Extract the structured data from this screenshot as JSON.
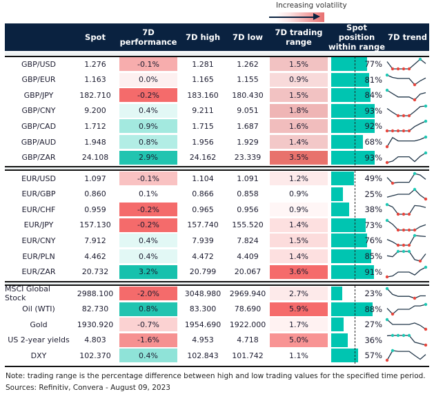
{
  "legend": {
    "label": "Increasing volatility"
  },
  "header": {
    "spot": "Spot",
    "perf": "7D performance",
    "high": "7D high",
    "low": "7D low",
    "range": "7D trading range",
    "position": "Spot position within range",
    "trend": "7D trend"
  },
  "colors": {
    "header": "#0a2240",
    "bar": "#00c5b1",
    "spark_line": "#1f3447",
    "max_marker": "#1cc8b4",
    "min_marker": "#e8453c"
  },
  "groups": [
    {
      "rows": [
        {
          "name": "GBP/USD",
          "spot": "1.276",
          "perf": "-0.1%",
          "perf_color": "#f7adad",
          "high": "1.281",
          "low": "1.262",
          "range": "1.5%",
          "range_color": "#f2c2c2",
          "position": 77,
          "position_label": "77%",
          "trend": [
            0.75,
            0,
            0,
            0,
            0,
            0.5,
            1,
            0.55
          ]
        },
        {
          "name": "GBP/EUR",
          "spot": "1.163",
          "perf": "0.0%",
          "perf_color": "#fdf0f0",
          "high": "1.165",
          "low": "1.155",
          "range": "0.9%",
          "range_color": "#f8dada",
          "position": 81,
          "position_label": "81%",
          "trend": [
            1,
            0.75,
            0.65,
            0.65,
            0.65,
            0,
            0.4,
            0.7
          ]
        },
        {
          "name": "GBP/JPY",
          "spot": "182.710",
          "perf": "-0.2%",
          "perf_color": "#f46b6b",
          "high": "183.160",
          "low": "180.430",
          "range": "1.5%",
          "range_color": "#f2c2c2",
          "position": 84,
          "position_label": "84%",
          "trend": [
            1,
            0.65,
            0.3,
            0.3,
            0.3,
            0,
            0.6,
            0.75
          ]
        },
        {
          "name": "GBP/CNY",
          "spot": "9.200",
          "perf": "0.4%",
          "perf_color": "#e2f8f5",
          "high": "9.211",
          "low": "9.051",
          "range": "1.8%",
          "range_color": "#efb5b5",
          "position": 93,
          "position_label": "93%",
          "trend": [
            0.75,
            0.35,
            0,
            0,
            0,
            0.45,
            0.95,
            1
          ]
        },
        {
          "name": "GBP/CAD",
          "spot": "1.712",
          "perf": "0.9%",
          "perf_color": "#a3e9df",
          "high": "1.715",
          "low": "1.687",
          "range": "1.6%",
          "range_color": "#f1bdbd",
          "position": 92,
          "position_label": "92%",
          "trend": [
            0,
            0,
            0,
            0,
            0,
            0.45,
            0.75,
            1
          ]
        },
        {
          "name": "GBP/AUD",
          "spot": "1.948",
          "perf": "0.8%",
          "perf_color": "#b2ede5",
          "high": "1.956",
          "low": "1.929",
          "range": "1.4%",
          "range_color": "#f3c8c8",
          "position": 68,
          "position_label": "68%",
          "trend": [
            0,
            0.95,
            0.6,
            0.6,
            0.6,
            0.6,
            0.75,
            1
          ]
        },
        {
          "name": "GBP/ZAR",
          "spot": "24.108",
          "perf": "2.9%",
          "perf_color": "#22c4b0",
          "high": "24.162",
          "low": "23.339",
          "range": "3.5%",
          "range_color": "#e8726c",
          "position": 93,
          "position_label": "93%",
          "trend": [
            0,
            0.15,
            0.6,
            0.6,
            0.6,
            0.1,
            0.65,
            1
          ]
        }
      ]
    },
    {
      "rows": [
        {
          "name": "EUR/USD",
          "spot": "1.097",
          "perf": "-0.1%",
          "perf_color": "#f9c2c2",
          "high": "1.104",
          "low": "1.091",
          "range": "1.2%",
          "range_color": "#fdeaea",
          "position": 49,
          "position_label": "49%",
          "trend": [
            0.6,
            0,
            0.1,
            0.1,
            0.1,
            1,
            0.85,
            0.4
          ]
        },
        {
          "name": "EUR/GBP",
          "spot": "0.860",
          "perf": "0.1%",
          "perf_color": "#ffffff",
          "high": "0.866",
          "low": "0.858",
          "range": "0.9%",
          "range_color": "#ffffff",
          "position": 25,
          "position_label": "25%",
          "trend": [
            0.2,
            0.35,
            0.5,
            0.5,
            0.5,
            1,
            0.4,
            0
          ]
        },
        {
          "name": "EUR/CHF",
          "spot": "0.959",
          "perf": "-0.2%",
          "perf_color": "#f46b6b",
          "high": "0.965",
          "low": "0.956",
          "range": "0.9%",
          "range_color": "#fff6f6",
          "position": 38,
          "position_label": "38%",
          "trend": [
            1,
            0.75,
            0,
            0,
            0,
            0.9,
            0.85,
            0.7
          ]
        },
        {
          "name": "EUR/JPY",
          "spot": "157.130",
          "perf": "-0.2%",
          "perf_color": "#f46b6b",
          "high": "157.740",
          "low": "155.520",
          "range": "1.4%",
          "range_color": "#fde0e0",
          "position": 73,
          "position_label": "73%",
          "trend": [
            1,
            0.6,
            0,
            0,
            0,
            0,
            0.35,
            0.55
          ]
        },
        {
          "name": "EUR/CNY",
          "spot": "7.912",
          "perf": "0.4%",
          "perf_color": "#e2f8f5",
          "high": "7.939",
          "low": "7.824",
          "range": "1.5%",
          "range_color": "#fcdcdc",
          "position": 76,
          "position_label": "76%",
          "trend": [
            0.6,
            0.35,
            0,
            0,
            0,
            1,
            0.95,
            0.9
          ]
        },
        {
          "name": "EUR/PLN",
          "spot": "4.462",
          "perf": "0.4%",
          "perf_color": "#e2f8f5",
          "high": "4.472",
          "low": "4.409",
          "range": "1.4%",
          "range_color": "#fde0e0",
          "position": 85,
          "position_label": "85%",
          "trend": [
            0.55,
            0.45,
            1,
            1,
            1,
            0.15,
            0,
            0.75
          ]
        },
        {
          "name": "EUR/ZAR",
          "spot": "20.732",
          "perf": "3.2%",
          "perf_color": "#16c1ad",
          "high": "20.799",
          "low": "20.067",
          "range": "3.6%",
          "range_color": "#f56b6b",
          "position": 91,
          "position_label": "91%",
          "trend": [
            0,
            0.1,
            0.5,
            0.5,
            0.5,
            0.2,
            0.7,
            1
          ]
        }
      ]
    },
    {
      "rows": [
        {
          "name": "MSCI Global Stock",
          "spot": "2988.100",
          "perf": "-2.0%",
          "perf_color": "#f46b6b",
          "high": "3048.980",
          "low": "2969.940",
          "range": "2.7%",
          "range_color": "#fdeaea",
          "position": 23,
          "position_label": "23%",
          "trend": [
            1,
            0.4,
            0.2,
            0.2,
            0.2,
            0,
            0.25,
            0.25
          ]
        },
        {
          "name": "Oil (WTI)",
          "spot": "82.730",
          "perf": "0.8%",
          "perf_color": "#22c4b0",
          "high": "83.300",
          "low": "78.690",
          "range": "5.9%",
          "range_color": "#f56b6b",
          "position": 88,
          "position_label": "88%",
          "trend": [
            0.6,
            0,
            0.5,
            0.5,
            0.5,
            0.85,
            0.85,
            1
          ]
        },
        {
          "name": "Gold",
          "spot": "1930.920",
          "perf": "-0.7%",
          "perf_color": "#fbd2d2",
          "high": "1954.690",
          "low": "1922.000",
          "range": "1.7%",
          "range_color": "#fff2f2",
          "position": 27,
          "position_label": "27%",
          "trend": [
            1,
            0.5,
            0.5,
            0.5,
            0.5,
            0.65,
            0.4,
            0
          ]
        },
        {
          "name": "US 2-year yields",
          "spot": "4.803",
          "perf": "-1.6%",
          "perf_color": "#f69191",
          "high": "4.953",
          "low": "4.718",
          "range": "5.0%",
          "range_color": "#f89494",
          "position": 36,
          "position_label": "36%",
          "trend": [
            0.97,
            1,
            1,
            1,
            1,
            0.3,
            0.15,
            0
          ]
        },
        {
          "name": "DXY",
          "spot": "102.370",
          "perf": "0.4%",
          "perf_color": "#8fe3d8",
          "high": "102.843",
          "low": "101.742",
          "range": "1.1%",
          "range_color": "#ffffff",
          "position": 57,
          "position_label": "57%",
          "trend": [
            0,
            1,
            0.92,
            0.92,
            0.92,
            0.5,
            0.1,
            0.6
          ]
        }
      ]
    }
  ],
  "notes": {
    "line1": "Note: trading range is the percentage difference between high and low trading values for the specified time period.",
    "line2": "Sources: Refinitiv, Convera - August 09, 2023"
  }
}
